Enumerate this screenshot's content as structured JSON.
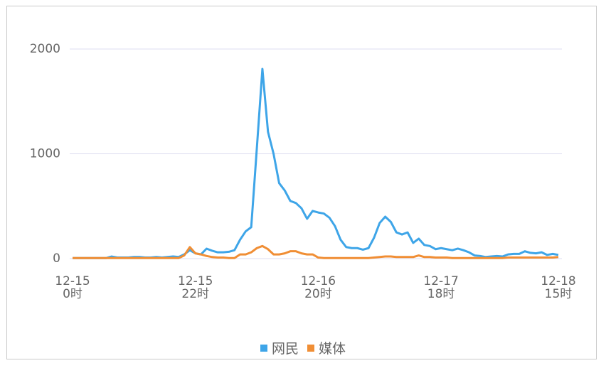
{
  "chart_data": {
    "type": "line",
    "categories": [
      "12-15\n0时",
      null,
      null,
      null,
      null,
      null,
      null,
      null,
      null,
      null,
      null,
      null,
      null,
      null,
      null,
      null,
      null,
      null,
      null,
      null,
      null,
      null,
      "12-15\n22时",
      null,
      null,
      null,
      null,
      null,
      null,
      null,
      null,
      null,
      null,
      null,
      null,
      null,
      null,
      null,
      null,
      null,
      null,
      null,
      null,
      null,
      "12-16\n20时",
      null,
      null,
      null,
      null,
      null,
      null,
      null,
      null,
      null,
      null,
      null,
      null,
      null,
      null,
      null,
      null,
      null,
      null,
      null,
      null,
      null,
      "12-17\n18时",
      null,
      null,
      null,
      null,
      null,
      null,
      null,
      null,
      null,
      null,
      null,
      null,
      null,
      null,
      null,
      null,
      null,
      null,
      null,
      null,
      "12-18\n15时"
    ],
    "series": [
      {
        "name": "网民",
        "color": "#3ea5e8",
        "values": [
          5,
          5,
          5,
          5,
          5,
          5,
          5,
          20,
          10,
          10,
          10,
          15,
          15,
          10,
          10,
          15,
          10,
          15,
          20,
          15,
          40,
          80,
          50,
          40,
          95,
          75,
          60,
          60,
          65,
          80,
          180,
          260,
          300,
          1050,
          1810,
          1210,
          1000,
          720,
          650,
          550,
          530,
          480,
          380,
          455,
          440,
          430,
          390,
          310,
          180,
          110,
          100,
          100,
          85,
          100,
          200,
          340,
          400,
          350,
          250,
          230,
          250,
          150,
          190,
          130,
          120,
          90,
          100,
          90,
          80,
          95,
          80,
          60,
          30,
          25,
          15,
          20,
          25,
          20,
          40,
          45,
          45,
          70,
          55,
          50,
          60,
          35,
          45,
          35
        ]
      },
      {
        "name": "媒体",
        "color": "#f08e35",
        "values": [
          5,
          5,
          5,
          5,
          5,
          5,
          5,
          5,
          5,
          5,
          5,
          5,
          5,
          5,
          5,
          5,
          5,
          5,
          5,
          5,
          30,
          110,
          50,
          40,
          25,
          15,
          10,
          10,
          5,
          5,
          40,
          40,
          60,
          100,
          120,
          90,
          40,
          40,
          50,
          70,
          70,
          50,
          40,
          40,
          10,
          5,
          5,
          5,
          5,
          5,
          5,
          5,
          5,
          5,
          10,
          15,
          20,
          20,
          15,
          15,
          15,
          15,
          30,
          15,
          15,
          10,
          10,
          10,
          5,
          5,
          5,
          5,
          5,
          5,
          5,
          5,
          5,
          5,
          10,
          10,
          10,
          10,
          10,
          10,
          10,
          10,
          10,
          15
        ]
      }
    ],
    "ylim": [
      0,
      2000
    ],
    "yticks": [
      0,
      1000,
      2000
    ],
    "grid": true
  }
}
